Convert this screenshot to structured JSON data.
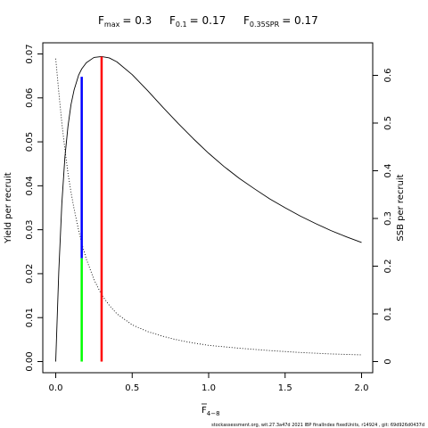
{
  "chart_data": {
    "type": "line",
    "title_parts": {
      "fmax": {
        "label": "F",
        "sub": "max",
        "value": "= 0.3"
      },
      "f01": {
        "label": "F",
        "sub": "0.1",
        "value": "= 0.17"
      },
      "f035": {
        "label": "F",
        "sub": "0.35SPR",
        "value": "= 0.17"
      }
    },
    "xlabel": {
      "label": "F",
      "sub": "4−8"
    },
    "ylabel_left": "Yield per recruit",
    "ylabel_right": "SSB per recruit",
    "xlim": [
      0,
      2
    ],
    "ylim_left": [
      0,
      0.07
    ],
    "ylim_right": [
      0,
      0.65
    ],
    "x_ticks": [
      0,
      0.5,
      1,
      1.5,
      2
    ],
    "x_tick_labels": [
      "0.0",
      "0.5",
      "1.0",
      "1.5",
      "2.0"
    ],
    "y_left_ticks": [
      0,
      0.01,
      0.02,
      0.03,
      0.04,
      0.05,
      0.06,
      0.07
    ],
    "y_left_tick_labels": [
      "0.00",
      "0.01",
      "0.02",
      "0.03",
      "0.04",
      "0.05",
      "0.06",
      "0.07"
    ],
    "y_right_ticks": [
      0,
      0.1,
      0.2,
      0.3,
      0.4,
      0.5,
      0.6
    ],
    "y_right_tick_labels": [
      "0",
      "0.1",
      "0.2",
      "0.3",
      "0.4",
      "0.5",
      "0.6"
    ],
    "series": [
      {
        "axis": "left",
        "style": "solid",
        "color": "#000000",
        "x": [
          0,
          0.02,
          0.04,
          0.06,
          0.08,
          0.1,
          0.12,
          0.15,
          0.17,
          0.2,
          0.25,
          0.3,
          0.35,
          0.4,
          0.5,
          0.6,
          0.7,
          0.8,
          0.9,
          1.0,
          1.1,
          1.2,
          1.3,
          1.4,
          1.5,
          1.6,
          1.7,
          1.8,
          1.9,
          2.0
        ],
        "y": [
          0,
          0.0205,
          0.036,
          0.0465,
          0.0535,
          0.0585,
          0.0618,
          0.0652,
          0.0666,
          0.068,
          0.0692,
          0.0694,
          0.0691,
          0.0682,
          0.0653,
          0.0617,
          0.0579,
          0.0542,
          0.0507,
          0.0474,
          0.0444,
          0.0417,
          0.0393,
          0.037,
          0.035,
          0.0331,
          0.0314,
          0.0298,
          0.0284,
          0.0271
        ]
      },
      {
        "axis": "right",
        "style": "dotted",
        "color": "#000000",
        "x": [
          0,
          0.02,
          0.04,
          0.06,
          0.08,
          0.1,
          0.12,
          0.15,
          0.17,
          0.2,
          0.25,
          0.3,
          0.35,
          0.4,
          0.5,
          0.6,
          0.7,
          0.8,
          0.9,
          1.0,
          1.2,
          1.4,
          1.6,
          1.8,
          2.0
        ],
        "y": [
          0.635,
          0.565,
          0.5,
          0.445,
          0.395,
          0.355,
          0.32,
          0.275,
          0.248,
          0.215,
          0.172,
          0.14,
          0.118,
          0.1,
          0.077,
          0.063,
          0.053,
          0.045,
          0.039,
          0.034,
          0.028,
          0.023,
          0.019,
          0.016,
          0.014
        ]
      }
    ],
    "reference_lines": [
      {
        "name": "F0.1 segment (SSB)",
        "color": "#0000ff",
        "x": 0.17,
        "y_from": 0.0235,
        "y_to": 0.0648,
        "axis": "left"
      },
      {
        "name": "F0.35SPR segment",
        "color": "#00ff00",
        "x": 0.17,
        "y_from": 0,
        "y_to": 0.0235,
        "axis": "left"
      },
      {
        "name": "Fmax",
        "color": "#ff0000",
        "x": 0.3,
        "y_from": 0,
        "y_to": 0.0694,
        "axis": "left"
      }
    ],
    "footer": "stockassessment.org, wit.27.3a47d 2021 IBP finalIndex fixedUnits, r14924 , git: 69d926d0437d",
    "grid": false,
    "legend": "none"
  }
}
